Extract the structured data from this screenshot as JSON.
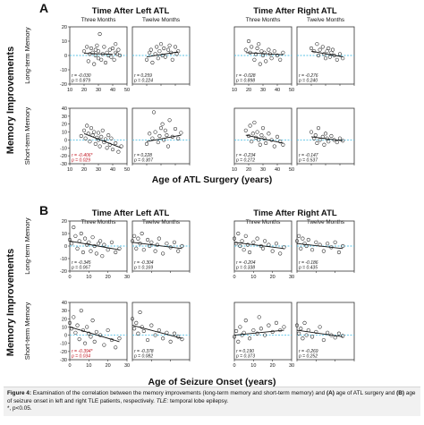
{
  "panels": [
    {
      "letter": "A",
      "group_titles": [
        "Time After Left ATL",
        "Time After Right ATL"
      ],
      "col_titles": [
        "Three Months",
        "Twelve Months",
        "Three Months",
        "Twelve Months"
      ],
      "y_main": "Memory Improvements",
      "row_labels": [
        "Long-term Memory",
        "Short-term Memory"
      ],
      "x_axis_title": "Age of ATL Surgery (years)",
      "x_ticks": [
        [
          "10",
          "20",
          "30",
          "40",
          "50"
        ],
        [
          "10",
          "20",
          "30",
          "40",
          "50"
        ]
      ],
      "y_ticks": [
        [
          "20",
          "10",
          "0",
          "-10",
          "-20"
        ],
        [
          "40",
          "30",
          "20",
          "10",
          "0",
          "-10",
          "-20",
          "-30"
        ]
      ]
    },
    {
      "letter": "B",
      "group_titles": [
        "Time After Left ATL",
        "Time After Right ATL"
      ],
      "col_titles": [
        "Three Months",
        "Twelve Months",
        "Three Months",
        "Twelve Months"
      ],
      "y_main": "Memory Improvements",
      "row_labels": [
        "Long-term Memory",
        "Short-term Memory"
      ],
      "x_axis_title": "Age of Seizure Onset (years)",
      "x_ticks": [
        [
          "0",
          "10",
          "20",
          "30"
        ],
        [
          "0",
          "10",
          "20",
          "30"
        ]
      ],
      "y_ticks": [
        [
          "20",
          "10",
          "0",
          "-10",
          "-20"
        ],
        [
          "40",
          "30",
          "20",
          "10",
          "0",
          "-10",
          "-20",
          "-30"
        ]
      ]
    }
  ],
  "chart_data": [
    {
      "type": "scatter",
      "panel": "A",
      "row": "Long-term Memory",
      "col": "Left ATL, Three Months",
      "xlim": [
        10,
        50
      ],
      "ylim": [
        -20,
        20
      ],
      "stats": [
        "r = -0.030",
        "p = 0.879"
      ],
      "significant": false,
      "trend": [
        [
          20,
          1.5
        ],
        [
          40,
          0.8
        ]
      ],
      "x": [
        20,
        22,
        23,
        24,
        25,
        26,
        27,
        28,
        28,
        29,
        30,
        30,
        31,
        32,
        33,
        34,
        35,
        36,
        37,
        38,
        39,
        40,
        41,
        42,
        42,
        43,
        44,
        45
      ],
      "y": [
        3,
        6,
        -4,
        1,
        5,
        2,
        -6,
        4,
        0,
        7,
        -2,
        3,
        15,
        -3,
        1,
        6,
        -5,
        2,
        0,
        4,
        -1,
        5,
        -3,
        2,
        8,
        1,
        4,
        0
      ]
    },
    {
      "type": "scatter",
      "panel": "A",
      "row": "Long-term Memory",
      "col": "Left ATL, Twelve Months",
      "xlim": [
        10,
        50
      ],
      "ylim": [
        -20,
        20
      ],
      "stats": [
        "r = 0.259",
        "p = 0.224"
      ],
      "significant": false,
      "trend": [
        [
          20,
          -1
        ],
        [
          42,
          2.5
        ]
      ],
      "x": [
        20,
        22,
        23,
        24,
        26,
        27,
        28,
        29,
        30,
        31,
        32,
        33,
        35,
        36,
        37,
        38,
        40,
        41,
        42
      ],
      "y": [
        -3,
        2,
        4,
        -5,
        1,
        6,
        -2,
        3,
        8,
        0,
        5,
        -1,
        4,
        7,
        2,
        -3,
        6,
        1,
        3
      ]
    },
    {
      "type": "scatter",
      "panel": "A",
      "row": "Long-term Memory",
      "col": "Right ATL, Three Months",
      "xlim": [
        10,
        50
      ],
      "ylim": [
        -20,
        20
      ],
      "stats": [
        "r = -0.028",
        "p = 0.898"
      ],
      "significant": false,
      "trend": [
        [
          18,
          2
        ],
        [
          44,
          0.5
        ]
      ],
      "x": [
        18,
        20,
        21,
        22,
        24,
        25,
        26,
        27,
        28,
        29,
        30,
        31,
        32,
        34,
        35,
        36,
        38,
        40,
        42,
        44
      ],
      "y": [
        4,
        10,
        2,
        6,
        -3,
        1,
        5,
        8,
        -6,
        3,
        0,
        2,
        -4,
        4,
        1,
        -2,
        3,
        0,
        -3,
        2
      ]
    },
    {
      "type": "scatter",
      "panel": "A",
      "row": "Long-term Memory",
      "col": "Right ATL, Twelve Months",
      "xlim": [
        10,
        50
      ],
      "ylim": [
        -20,
        20
      ],
      "stats": [
        "r = -0.276",
        "p = 0.240"
      ],
      "significant": false,
      "trend": [
        [
          20,
          3
        ],
        [
          42,
          -1
        ]
      ],
      "x": [
        20,
        22,
        24,
        25,
        26,
        28,
        29,
        30,
        31,
        32,
        33,
        34,
        35,
        36,
        38,
        40,
        42
      ],
      "y": [
        5,
        3,
        8,
        0,
        4,
        6,
        1,
        -2,
        3,
        5,
        -1,
        2,
        4,
        0,
        -3,
        1,
        -2
      ]
    },
    {
      "type": "scatter",
      "panel": "A",
      "row": "Short-term Memory",
      "col": "Left ATL, Three Months",
      "xlim": [
        10,
        50
      ],
      "ylim": [
        -30,
        40
      ],
      "stats": [
        "r = -0.406*",
        "p = 0.029"
      ],
      "significant": true,
      "trend": [
        [
          20,
          8
        ],
        [
          46,
          -10
        ]
      ],
      "x": [
        18,
        20,
        21,
        22,
        23,
        24,
        25,
        26,
        27,
        28,
        29,
        30,
        30,
        31,
        32,
        33,
        34,
        35,
        36,
        37,
        38,
        39,
        40,
        42,
        44,
        46
      ],
      "y": [
        5,
        12,
        2,
        18,
        8,
        -2,
        15,
        6,
        10,
        -5,
        3,
        0,
        9,
        -8,
        4,
        12,
        -3,
        1,
        -10,
        6,
        -6,
        2,
        -12,
        -4,
        -15,
        -8
      ]
    },
    {
      "type": "scatter",
      "panel": "A",
      "row": "Short-term Memory",
      "col": "Left ATL, Twelve Months",
      "xlim": [
        10,
        50
      ],
      "ylim": [
        -30,
        40
      ],
      "stats": [
        "r = 0.228",
        "p = 0.307"
      ],
      "significant": false,
      "trend": [
        [
          20,
          -2
        ],
        [
          44,
          6
        ]
      ],
      "x": [
        20,
        22,
        24,
        25,
        26,
        28,
        29,
        30,
        31,
        32,
        33,
        34,
        35,
        36,
        38,
        40,
        42,
        44
      ],
      "y": [
        -5,
        8,
        2,
        35,
        10,
        -3,
        5,
        15,
        20,
        0,
        12,
        6,
        -8,
        25,
        4,
        14,
        2,
        9
      ]
    },
    {
      "type": "scatter",
      "panel": "A",
      "row": "Short-term Memory",
      "col": "Right ATL, Three Months",
      "xlim": [
        10,
        50
      ],
      "ylim": [
        -30,
        40
      ],
      "stats": [
        "r = -0.234",
        "p = 0.272"
      ],
      "significant": false,
      "trend": [
        [
          18,
          6
        ],
        [
          44,
          -4
        ]
      ],
      "x": [
        18,
        20,
        21,
        22,
        23,
        24,
        25,
        26,
        27,
        28,
        29,
        30,
        31,
        32,
        34,
        36,
        38,
        40,
        42,
        44
      ],
      "y": [
        12,
        5,
        18,
        -2,
        8,
        22,
        3,
        10,
        0,
        -6,
        6,
        15,
        2,
        -4,
        8,
        0,
        -8,
        4,
        -2,
        -6
      ]
    },
    {
      "type": "scatter",
      "panel": "A",
      "row": "Short-term Memory",
      "col": "Right ATL, Twelve Months",
      "xlim": [
        10,
        50
      ],
      "ylim": [
        -30,
        40
      ],
      "stats": [
        "r = -0.147",
        "p = 0.537"
      ],
      "significant": false,
      "trend": [
        [
          20,
          4
        ],
        [
          42,
          -1
        ]
      ],
      "x": [
        20,
        22,
        23,
        24,
        25,
        26,
        28,
        29,
        30,
        31,
        32,
        34,
        36,
        38,
        40,
        42
      ],
      "y": [
        10,
        2,
        6,
        -4,
        15,
        0,
        4,
        -6,
        8,
        2,
        -2,
        5,
        0,
        -3,
        2,
        -1
      ]
    },
    {
      "type": "scatter",
      "panel": "B",
      "row": "Long-term Memory",
      "col": "Left ATL, Three Months",
      "xlim": [
        0,
        30
      ],
      "ylim": [
        -20,
        20
      ],
      "stats": [
        "r = -0.345",
        "p = 0.067"
      ],
      "significant": false,
      "trend": [
        [
          0,
          4
        ],
        [
          26,
          -3
        ]
      ],
      "x": [
        0,
        1,
        2,
        3,
        4,
        5,
        6,
        7,
        8,
        9,
        10,
        11,
        12,
        13,
        14,
        15,
        16,
        17,
        18,
        20,
        22,
        24,
        26
      ],
      "y": [
        5,
        2,
        15,
        8,
        -2,
        4,
        10,
        -5,
        6,
        1,
        3,
        -4,
        7,
        0,
        -6,
        2,
        4,
        -8,
        1,
        -3,
        3,
        -5,
        -2
      ]
    },
    {
      "type": "scatter",
      "panel": "B",
      "row": "Long-term Memory",
      "col": "Left ATL, Twelve Months",
      "xlim": [
        0,
        30
      ],
      "ylim": [
        -20,
        20
      ],
      "stats": [
        "r = -0.304",
        "p = 0.169"
      ],
      "significant": false,
      "trend": [
        [
          0,
          3
        ],
        [
          26,
          -2
        ]
      ],
      "x": [
        0,
        1,
        2,
        3,
        4,
        5,
        6,
        8,
        9,
        10,
        12,
        13,
        14,
        16,
        18,
        20,
        22,
        24,
        26
      ],
      "y": [
        4,
        8,
        -2,
        6,
        2,
        10,
        -3,
        5,
        0,
        3,
        -4,
        1,
        6,
        -6,
        2,
        -1,
        3,
        -4,
        0
      ]
    },
    {
      "type": "scatter",
      "panel": "B",
      "row": "Long-term Memory",
      "col": "Right ATL, Three Months",
      "xlim": [
        0,
        30
      ],
      "ylim": [
        -20,
        20
      ],
      "stats": [
        "r = -0.204",
        "p = 0.338"
      ],
      "significant": false,
      "trend": [
        [
          0,
          3
        ],
        [
          26,
          -2
        ]
      ],
      "x": [
        0,
        1,
        2,
        3,
        4,
        5,
        6,
        7,
        8,
        10,
        12,
        14,
        15,
        16,
        18,
        20,
        22,
        24,
        26
      ],
      "y": [
        6,
        2,
        10,
        0,
        4,
        -3,
        8,
        1,
        -5,
        3,
        6,
        0,
        -2,
        4,
        1,
        -4,
        2,
        -6,
        -1
      ]
    },
    {
      "type": "scatter",
      "panel": "B",
      "row": "Long-term Memory",
      "col": "Right ATL, Twelve Months",
      "xlim": [
        0,
        30
      ],
      "ylim": [
        -20,
        20
      ],
      "stats": [
        "r = -0.186",
        "p = 0.435"
      ],
      "significant": false,
      "trend": [
        [
          0,
          2
        ],
        [
          24,
          -2
        ]
      ],
      "x": [
        0,
        1,
        2,
        3,
        4,
        5,
        6,
        8,
        10,
        12,
        14,
        16,
        18,
        20,
        22,
        24
      ],
      "y": [
        4,
        8,
        -2,
        6,
        2,
        0,
        5,
        -3,
        3,
        1,
        -4,
        2,
        -1,
        3,
        -5,
        0
      ]
    },
    {
      "type": "scatter",
      "panel": "B",
      "row": "Short-term Memory",
      "col": "Left ATL, Three Months",
      "xlim": [
        0,
        30
      ],
      "ylim": [
        -30,
        40
      ],
      "stats": [
        "r = -0.394*",
        "p = 0.034"
      ],
      "significant": true,
      "trend": [
        [
          0,
          10
        ],
        [
          26,
          -8
        ]
      ],
      "x": [
        0,
        1,
        2,
        3,
        4,
        5,
        6,
        7,
        8,
        9,
        10,
        11,
        12,
        13,
        14,
        16,
        18,
        20,
        22,
        24,
        26
      ],
      "y": [
        15,
        8,
        22,
        3,
        12,
        -5,
        30,
        6,
        -10,
        10,
        2,
        -2,
        18,
        -8,
        4,
        0,
        -12,
        6,
        -6,
        -15,
        -4
      ]
    },
    {
      "type": "scatter",
      "panel": "B",
      "row": "Short-term Memory",
      "col": "Left ATL, Twelve Months",
      "xlim": [
        0,
        30
      ],
      "ylim": [
        -30,
        40
      ],
      "stats": [
        "r = -0.378",
        "p = 0.082"
      ],
      "significant": false,
      "trend": [
        [
          0,
          12
        ],
        [
          26,
          -4
        ]
      ],
      "x": [
        0,
        1,
        2,
        3,
        4,
        5,
        6,
        8,
        10,
        12,
        14,
        16,
        18,
        20,
        22,
        24,
        26
      ],
      "y": [
        20,
        8,
        15,
        2,
        28,
        10,
        5,
        -6,
        12,
        0,
        6,
        -4,
        3,
        -8,
        2,
        -2,
        -5
      ]
    },
    {
      "type": "scatter",
      "panel": "B",
      "row": "Short-term Memory",
      "col": "Right ATL, Three Months",
      "xlim": [
        0,
        30
      ],
      "ylim": [
        -30,
        40
      ],
      "stats": [
        "r = 0.190",
        "p = 0.373"
      ],
      "significant": false,
      "trend": [
        [
          0,
          0
        ],
        [
          26,
          6
        ]
      ],
      "x": [
        0,
        1,
        2,
        3,
        4,
        5,
        6,
        8,
        10,
        12,
        13,
        14,
        16,
        18,
        20,
        22,
        24,
        26
      ],
      "y": [
        -2,
        5,
        -8,
        10,
        0,
        3,
        18,
        -4,
        6,
        2,
        22,
        8,
        0,
        12,
        4,
        15,
        6,
        10
      ]
    },
    {
      "type": "scatter",
      "panel": "B",
      "row": "Short-term Memory",
      "col": "Right ATL, Twelve Months",
      "xlim": [
        0,
        30
      ],
      "ylim": [
        -30,
        40
      ],
      "stats": [
        "r = -0.269",
        "p = 0.252"
      ],
      "significant": false,
      "trend": [
        [
          0,
          6
        ],
        [
          24,
          -2
        ]
      ],
      "x": [
        0,
        1,
        2,
        3,
        4,
        5,
        6,
        8,
        10,
        12,
        14,
        16,
        18,
        20,
        22,
        24
      ],
      "y": [
        12,
        2,
        8,
        -4,
        15,
        0,
        6,
        -2,
        4,
        10,
        -6,
        3,
        0,
        -3,
        2,
        -1
      ]
    }
  ],
  "caption": {
    "label": "Figure 4:",
    "text_1": " Examination of the correlation between the memory improvements (long-term memory and short-term memory) and ",
    "a_label": "(A)",
    "text_2": " age of ATL surgery and ",
    "b_label": "(B)",
    "text_3": " age of seizure onset in left and right TLE patients, respectively. ",
    "tle_abbr": "TLE:",
    "text_4": " temporal lobe epilepsy.",
    "footnote": "*, p<0.05."
  },
  "colors": {
    "dot_stroke": "#222222",
    "trend": "#111111",
    "zero_ref": "#5bc3e6",
    "significant_stat": "#c0141f",
    "caption_bg": "#f1f1f1"
  }
}
